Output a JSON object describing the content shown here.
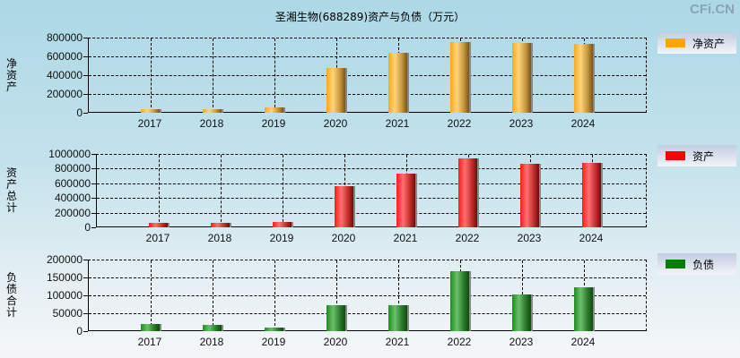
{
  "title": "圣湘生物(688289)资产与负债（万元）",
  "brand": "CFi.CN",
  "chart_data": [
    {
      "type": "bar",
      "title": "圣湘生物(688289)资产与负债（万元）",
      "ylabel": "净资产",
      "xlabel": "",
      "categories": [
        "2017",
        "2018",
        "2019",
        "2020",
        "2021",
        "2022",
        "2023",
        "2024"
      ],
      "series": [
        {
          "name": "净资产",
          "color": "#ffa500",
          "values": [
            38000,
            38000,
            57000,
            476000,
            638000,
            752000,
            743000,
            733000
          ]
        }
      ],
      "ylim": [
        0,
        800000
      ],
      "yticks": [
        "800000",
        "600000",
        "400000",
        "200000",
        "0"
      ],
      "grid": true,
      "legend_position": "right"
    },
    {
      "type": "bar",
      "ylabel": "资产总计",
      "xlabel": "",
      "categories": [
        "2017",
        "2018",
        "2019",
        "2020",
        "2021",
        "2022",
        "2023",
        "2024"
      ],
      "series": [
        {
          "name": "资产",
          "color": "#ff0000",
          "values": [
            61000,
            61000,
            73000,
            561000,
            732000,
            939000,
            866000,
            878000
          ]
        }
      ],
      "ylim": [
        0,
        1000000
      ],
      "yticks": [
        "1000000",
        "800000",
        "600000",
        "400000",
        "200000",
        "0"
      ],
      "grid": true,
      "legend_position": "right"
    },
    {
      "type": "bar",
      "ylabel": "负债合计",
      "xlabel": "",
      "categories": [
        "2017",
        "2018",
        "2019",
        "2020",
        "2021",
        "2022",
        "2023",
        "2024"
      ],
      "series": [
        {
          "name": "负债",
          "color": "#008000",
          "values": [
            20000,
            17500,
            10000,
            72500,
            72500,
            167500,
            102500,
            122500
          ]
        }
      ],
      "ylim": [
        0,
        200000
      ],
      "yticks": [
        "200000",
        "150000",
        "100000",
        "50000",
        "0"
      ],
      "grid": true,
      "legend_position": "right"
    }
  ]
}
